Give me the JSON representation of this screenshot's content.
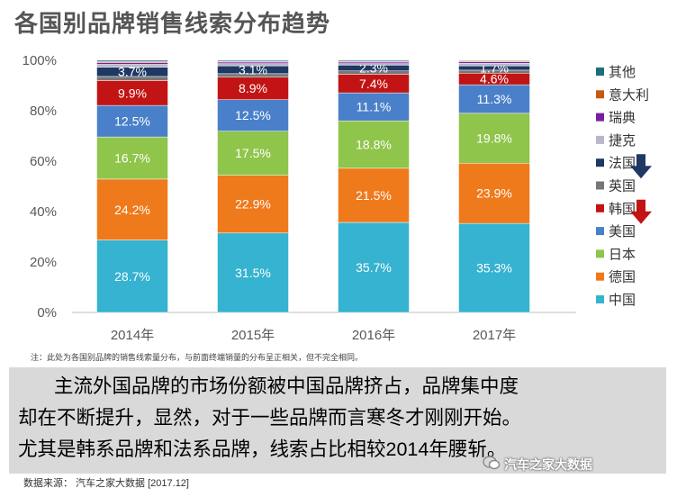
{
  "title": "各国别品牌销售线索分布趋势",
  "chart_data": {
    "type": "bar",
    "stacked": true,
    "categories": [
      "2014年",
      "2015年",
      "2016年",
      "2017年"
    ],
    "ylim": [
      0,
      100
    ],
    "yticks": [
      "0%",
      "20%",
      "40%",
      "60%",
      "80%",
      "100%"
    ],
    "series": [
      {
        "name": "中国",
        "color": "#35b3d0",
        "values": [
          28.7,
          31.5,
          35.7,
          35.3
        ],
        "labels": [
          "28.7%",
          "31.5%",
          "35.7%",
          "35.3%"
        ]
      },
      {
        "name": "德国",
        "color": "#ef7a1c",
        "values": [
          24.2,
          22.9,
          21.5,
          23.9
        ],
        "labels": [
          "24.2%",
          "22.9%",
          "21.5%",
          "23.9%"
        ]
      },
      {
        "name": "日本",
        "color": "#8fc54a",
        "values": [
          16.7,
          17.5,
          18.8,
          19.8
        ],
        "labels": [
          "16.7%",
          "17.5%",
          "18.8%",
          "19.8%"
        ]
      },
      {
        "name": "美国",
        "color": "#4a80c9",
        "values": [
          12.5,
          12.5,
          11.1,
          11.3
        ],
        "labels": [
          "12.5%",
          "12.5%",
          "11.1%",
          "11.3%"
        ]
      },
      {
        "name": "韩国",
        "color": "#c21414",
        "values": [
          9.9,
          8.9,
          7.4,
          4.6
        ],
        "labels": [
          "9.9%",
          "8.9%",
          "7.4%",
          "4.6%"
        ]
      },
      {
        "name": "英国",
        "color": "#777777",
        "values": [
          1.6,
          1.4,
          1.3,
          1.2
        ],
        "labels": [
          "",
          "",
          "",
          ""
        ]
      },
      {
        "name": "法国",
        "color": "#1f3864",
        "values": [
          3.7,
          3.1,
          2.3,
          1.7
        ],
        "labels": [
          "3.7%",
          "3.1%",
          "2.3%",
          "1.7%"
        ]
      },
      {
        "name": "捷克",
        "color": "#b7b7c9",
        "values": [
          1.1,
          0.9,
          0.6,
          1.0
        ],
        "labels": [
          "",
          "",
          "",
          ""
        ]
      },
      {
        "name": "瑞典",
        "color": "#7a1ea1",
        "values": [
          0.7,
          0.6,
          0.6,
          0.6
        ],
        "labels": [
          "",
          "",
          "",
          ""
        ]
      },
      {
        "name": "意大利",
        "color": "#c55a11",
        "values": [
          0.4,
          0.3,
          0.3,
          0.3
        ],
        "labels": [
          "",
          "",
          "",
          ""
        ]
      },
      {
        "name": "其他",
        "color": "#1a6f7a",
        "values": [
          0.5,
          0.4,
          0.4,
          0.3
        ],
        "labels": [
          "",
          "",
          "",
          ""
        ]
      }
    ],
    "legend_order": [
      "其他",
      "意大利",
      "瑞典",
      "捷克",
      "法国",
      "英国",
      "韩国",
      "美国",
      "日本",
      "德国",
      "中国"
    ],
    "legend_position": "right",
    "grid": false,
    "annotations": [
      {
        "type": "arrow-down",
        "color": "#1f3864",
        "legend_item": "法国"
      },
      {
        "type": "arrow-down",
        "color": "#c21414",
        "legend_item": "韩国"
      }
    ]
  },
  "note": "注：此处为各国别品牌的销售线索量分布，与前面终端销量的分布呈正相关，但不完全相同。",
  "summary": [
    "主流外国品牌的市场份额被中国品牌挤占，品牌集中度",
    "却在不断提升，显然，对于一些品牌而言寒冬才刚刚开始。",
    "尤其是韩系品牌和法系品牌，线索占比相较2014年腰斩。"
  ],
  "source": "数据来源：  汽车之家大数据  [2017.12]",
  "watermark": "汽车之家大数据"
}
